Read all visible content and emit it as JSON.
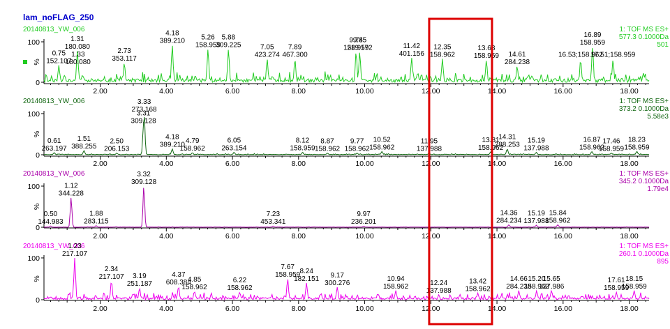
{
  "title": "lam_noFLAG_250",
  "chart_data": [
    {
      "type": "line",
      "sample": "20140813_YW_006",
      "channel": "1: TOF MS ES+",
      "mass": "577.3 0.1000Da",
      "intensity": "501",
      "color": "#22cc22",
      "xlim": [
        0.3,
        18.6
      ],
      "ylim": [
        0,
        100
      ],
      "y_ticks": [
        "100",
        "%",
        "0"
      ],
      "x_ticks": [
        2,
        4,
        6,
        8,
        10,
        12,
        14,
        16,
        18
      ],
      "x_tick_labels": [
        "2.00",
        "4.00",
        "6.00",
        "8.00",
        "10.00",
        "12.00",
        "14.00",
        "16.00",
        "18.00"
      ],
      "baseline_pct": 8,
      "noise_pct": 20,
      "seed": 11,
      "legend_marker": true,
      "peaks": [
        {
          "rt": 0.75,
          "mz": "152.107",
          "h": 42
        },
        {
          "rt": 1.31,
          "mz": "180.080",
          "h": 78
        },
        {
          "rt": 1.33,
          "mz": "180.080",
          "h": 40
        },
        {
          "rt": 2.73,
          "mz": "353.117",
          "h": 48
        },
        {
          "rt": 4.18,
          "mz": "389.210",
          "h": 92
        },
        {
          "rt": 5.26,
          "mz": "158.959",
          "h": 82
        },
        {
          "rt": 5.88,
          "mz": "309.225",
          "h": 82
        },
        {
          "rt": 7.05,
          "mz": "423.274",
          "h": 58
        },
        {
          "rt": 7.89,
          "mz": "467.300",
          "h": 58
        },
        {
          "rt": 9.74,
          "mz": "158.959",
          "h": 75
        },
        {
          "rt": 9.85,
          "mz": "219.172",
          "h": 75
        },
        {
          "rt": 11.42,
          "mz": "401.156",
          "h": 60
        },
        {
          "rt": 12.35,
          "mz": "158.962",
          "h": 58
        },
        {
          "rt": 13.68,
          "mz": "158.959",
          "h": 55
        },
        {
          "rt": 14.61,
          "mz": "284.238",
          "h": 40
        },
        {
          "rt": 16.53,
          "mz": "158.962",
          "h": 56,
          "inline": true
        },
        {
          "rt": 16.89,
          "mz": "158.959",
          "h": 88
        },
        {
          "rt": 17.51,
          "mz": "158.959",
          "h": 56,
          "inline": true
        }
      ]
    },
    {
      "type": "line",
      "sample": "20140813_YW_006",
      "channel": "1: TOF MS ES+",
      "mass": "373.2 0.1000Da",
      "intensity": "5.58e3",
      "color": "#116611",
      "xlim": [
        0.3,
        18.6
      ],
      "ylim": [
        0,
        100
      ],
      "y_ticks": [
        "100",
        "%",
        "0"
      ],
      "x_ticks": [
        2,
        4,
        6,
        8,
        10,
        12,
        14,
        16,
        18
      ],
      "x_tick_labels": [
        "2.00",
        "4.00",
        "6.00",
        "8.00",
        "10.00",
        "12.00",
        "14.00",
        "16.00",
        "18.00"
      ],
      "baseline_pct": 1,
      "noise_pct": 2,
      "seed": 23,
      "legend_marker": false,
      "peaks": [
        {
          "rt": 0.61,
          "mz": "263.197",
          "h": 5
        },
        {
          "rt": 1.51,
          "mz": "388.255",
          "h": 10
        },
        {
          "rt": 2.5,
          "label": "2.50",
          "mz": "206.153",
          "h": 4
        },
        {
          "rt": 3.31,
          "mz": "309.128",
          "h": 72
        },
        {
          "rt": 3.33,
          "mz": "273.168",
          "h": 100
        },
        {
          "rt": 4.18,
          "mz": "389.210",
          "h": 14
        },
        {
          "rt": 4.79,
          "mz": "158.962",
          "h": 5
        },
        {
          "rt": 6.05,
          "mz": "263.154",
          "h": 6
        },
        {
          "rt": 8.12,
          "mz": "158.959",
          "h": 6
        },
        {
          "rt": 8.87,
          "mz": "158.962",
          "h": 4
        },
        {
          "rt": 9.77,
          "mz": "158.962",
          "h": 4
        },
        {
          "rt": 10.52,
          "mz": "158.962",
          "h": 8
        },
        {
          "rt": 11.95,
          "mz": "137.988",
          "h": 4
        },
        {
          "rt": 13.81,
          "mz": "158.962",
          "h": 7
        },
        {
          "rt": 14.31,
          "mz": "288.253",
          "h": 14
        },
        {
          "rt": 15.19,
          "mz": "137.988",
          "h": 6
        },
        {
          "rt": 16.87,
          "mz": "158.962",
          "h": 8
        },
        {
          "rt": 17.46,
          "mz": "158.959",
          "h": 4
        },
        {
          "rt": 18.23,
          "mz": "158.959",
          "h": 8
        }
      ]
    },
    {
      "type": "line",
      "sample": "20140813_YW_006",
      "channel": "1: TOF MS ES+",
      "mass": "345.2 0.1000Da",
      "intensity": "1.79e4",
      "color": "#aa00aa",
      "xlim": [
        0.3,
        18.6
      ],
      "ylim": [
        0,
        100
      ],
      "y_ticks": [
        "100",
        "%",
        "0"
      ],
      "x_ticks": [
        2,
        4,
        6,
        8,
        10,
        12,
        14,
        16,
        18
      ],
      "x_tick_labels": [
        "2.00",
        "4.00",
        "6.00",
        "8.00",
        "10.00",
        "12.00",
        "14.00",
        "16.00",
        "18.00"
      ],
      "baseline_pct": 0.5,
      "noise_pct": 0.6,
      "seed": 37,
      "legend_marker": false,
      "peaks": [
        {
          "rt": 0.5,
          "label": "0.50",
          "mz": "144.983",
          "h": 3
        },
        {
          "rt": 1.12,
          "mz": "344.228",
          "h": 72
        },
        {
          "rt": 1.88,
          "mz": "283.115",
          "h": 4
        },
        {
          "rt": 3.32,
          "mz": "309.128",
          "h": 100
        },
        {
          "rt": 7.23,
          "mz": "453.341",
          "h": 3
        },
        {
          "rt": 9.97,
          "mz": "236.201",
          "h": 3
        },
        {
          "rt": 14.36,
          "mz": "284.234",
          "h": 6
        },
        {
          "rt": 15.19,
          "mz": "137.988",
          "h": 5
        },
        {
          "rt": 15.84,
          "mz": "158.962",
          "h": 6
        }
      ]
    },
    {
      "type": "line",
      "sample": "20140813_YW_006",
      "channel": "1: TOF MS ES+",
      "mass": "260.1 0.1000Da",
      "intensity": "895",
      "color": "#ee00ee",
      "xlim": [
        0.3,
        18.6
      ],
      "ylim": [
        0,
        100
      ],
      "y_ticks": [
        "100",
        "%",
        "0"
      ],
      "x_ticks": [
        2,
        4,
        6,
        8,
        10,
        12,
        14,
        16,
        18
      ],
      "x_tick_labels": [
        "2.00",
        "4.00",
        "6.00",
        "8.00",
        "10.00",
        "12.00",
        "14.00",
        "16.00",
        "18.00"
      ],
      "baseline_pct": 5,
      "noise_pct": 14,
      "seed": 53,
      "legend_marker": false,
      "peaks": [
        {
          "rt": 1.23,
          "mz": "217.107",
          "h": 100
        },
        {
          "rt": 2.34,
          "mz": "217.107",
          "h": 45
        },
        {
          "rt": 3.19,
          "mz": "251.187",
          "h": 28
        },
        {
          "rt": 4.37,
          "mz": "608.384",
          "h": 32
        },
        {
          "rt": 4.85,
          "mz": "158.962",
          "h": 20
        },
        {
          "rt": 6.22,
          "mz": "158.962",
          "h": 18
        },
        {
          "rt": 7.67,
          "mz": "158.959",
          "h": 50
        },
        {
          "rt": 8.24,
          "mz": "182.151",
          "h": 40
        },
        {
          "rt": 9.17,
          "mz": "300.276",
          "h": 30
        },
        {
          "rt": 10.94,
          "mz": "158.962",
          "h": 22
        },
        {
          "rt": 12.24,
          "mz": "137.988",
          "h": 12
        },
        {
          "rt": 13.42,
          "mz": "158.962",
          "h": 16
        },
        {
          "rt": 14.66,
          "mz": "284.238",
          "h": 22
        },
        {
          "rt": 15.2,
          "label": "15.20",
          "mz": "158.962",
          "h": 22
        },
        {
          "rt": 15.65,
          "mz": "137.986",
          "h": 22
        },
        {
          "rt": 17.61,
          "mz": "158.959",
          "h": 18
        },
        {
          "rt": 18.15,
          "mz": "158.959",
          "h": 22
        }
      ]
    }
  ],
  "highlight_box": {
    "color": "#dd0000",
    "x_from": 11.95,
    "x_to": 13.85
  }
}
